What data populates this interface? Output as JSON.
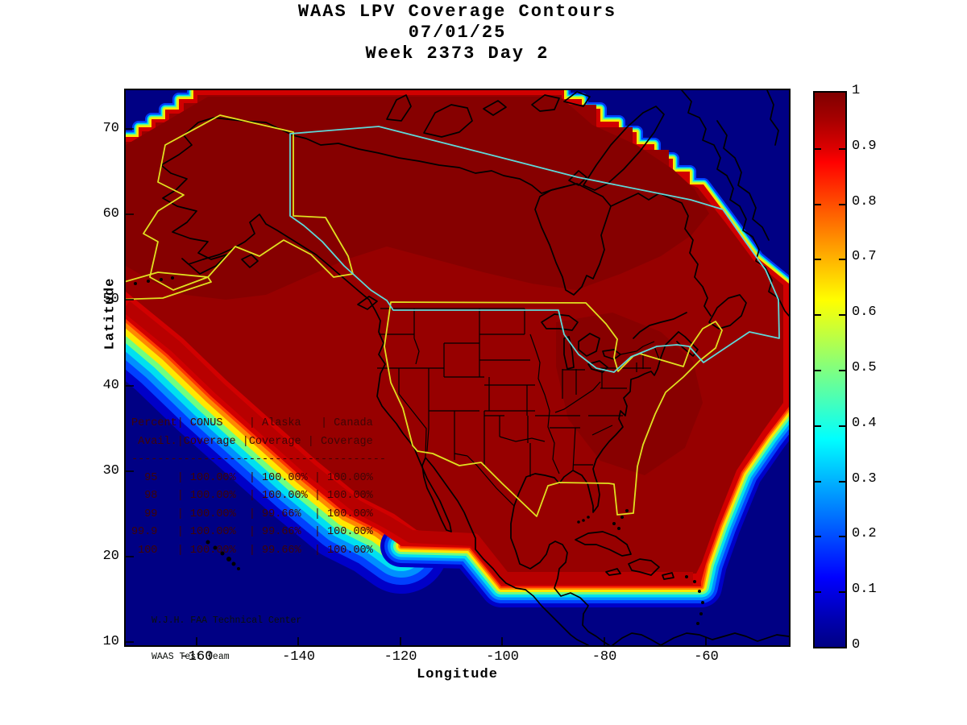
{
  "title": {
    "line1": "WAAS LPV Coverage Contours",
    "line2": "07/01/25",
    "line3": "Week 2373 Day 2"
  },
  "axes": {
    "x_label": "Longitude",
    "y_label": "Latitude",
    "x_ticks": [
      "-160",
      "-140",
      "-120",
      "-100",
      "-80",
      "-60"
    ],
    "y_ticks": [
      "70",
      "60",
      "50",
      "40",
      "30",
      "20",
      "10"
    ]
  },
  "colorbar": {
    "tick_labels": [
      "1",
      "0.9",
      "0.8",
      "0.7",
      "0.6",
      "0.5",
      "0.4",
      "0.3",
      "0.2",
      "0.1",
      "0"
    ],
    "max_color": "#800000",
    "min_color": "#000084"
  },
  "coverage_table": {
    "header_line1": "Percent| CONUS    | Alaska   | Canada",
    "header_line2": " Avail.|Coverage |Coverage | Coverage",
    "separator": "---------------------------------------",
    "rows": [
      [
        "95",
        "100.00%",
        "100.00%",
        "100.00%"
      ],
      [
        "98",
        "100.00%",
        "100.00%",
        "100.00%"
      ],
      [
        "99",
        "100.00%",
        "99.66%",
        "100.00%"
      ],
      [
        "99.9",
        "100.00%",
        "99.66%",
        "100.00%"
      ],
      [
        "100",
        "100.00%",
        "99.66%",
        "100.00%"
      ]
    ]
  },
  "credit": {
    "line1": "W.J.H. FAA Technical Center",
    "line2": "WAAS Test Team"
  },
  "colors": {
    "ocean_navy": "#000084",
    "coverage_bright_red": "#d10000",
    "coverage_dark_red": "#970000",
    "coverage_darker_red": "#860000",
    "conus_alaska_boundary_yellow": "#e0e020",
    "canada_boundary_cyan": "#5fd8d8",
    "coastline_black": "#000000"
  },
  "chart_data": {
    "type": "heatmap",
    "title": "WAAS LPV Coverage Contours 07/01/25 Week 2373 Day 2",
    "xlabel": "Longitude",
    "ylabel": "Latitude",
    "xlim": [
      -175,
      -43
    ],
    "ylim": [
      10,
      75
    ],
    "colorbar_range": [
      0,
      1
    ],
    "colorbar_ticks": [
      0,
      0.1,
      0.2,
      0.3,
      0.4,
      0.5,
      0.6,
      0.7,
      0.8,
      0.9,
      1
    ],
    "colormap": "jet",
    "description": "Filled contour map of WAAS LPV coverage probability over North America; coverage near 1.0 (dark red) over CONUS, Alaska and Canada, falling to 0 (dark blue) over the Pacific southwest, Atlantic northeast and Caribbean southeast edges",
    "series": [
      {
        "name": "Percent Avail 95",
        "CONUS": 100.0,
        "Alaska": 100.0,
        "Canada": 100.0
      },
      {
        "name": "Percent Avail 98",
        "CONUS": 100.0,
        "Alaska": 100.0,
        "Canada": 100.0
      },
      {
        "name": "Percent Avail 99",
        "CONUS": 100.0,
        "Alaska": 99.66,
        "Canada": 100.0
      },
      {
        "name": "Percent Avail 99.9",
        "CONUS": 100.0,
        "Alaska": 99.66,
        "Canada": 100.0
      },
      {
        "name": "Percent Avail 100",
        "CONUS": 100.0,
        "Alaska": 99.66,
        "Canada": 100.0
      }
    ]
  }
}
